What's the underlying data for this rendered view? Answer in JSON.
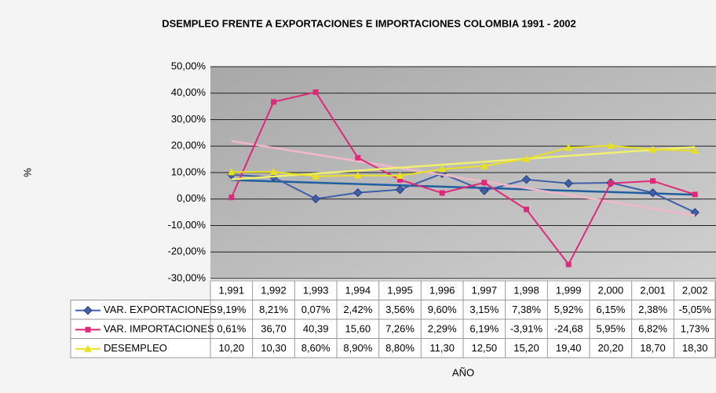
{
  "chart_data": {
    "type": "line",
    "title": "DSEMPLEO FRENTE A EXPORTACIONES E IMPORTACIONES COLOMBIA 1991 - 2002",
    "y_label": "%",
    "x_label": "AÑO",
    "categories": [
      "1,991",
      "1,992",
      "1,993",
      "1,994",
      "1,995",
      "1,996",
      "1,997",
      "1,998",
      "1,999",
      "2,000",
      "2,001",
      "2,002"
    ],
    "series": [
      {
        "name": "VAR. EXPORTACIONES",
        "color": "#3f5fa8",
        "trend_color": "#1f5f9f",
        "marker": "diamond",
        "values": [
          9.19,
          8.21,
          0.07,
          2.42,
          3.56,
          9.6,
          3.15,
          7.38,
          5.92,
          6.15,
          2.38,
          -5.05
        ],
        "value_labels": [
          "9,19%",
          "8,21%",
          "0,07%",
          "2,42%",
          "3,56%",
          "9,60%",
          "3,15%",
          "7,38%",
          "5,92%",
          "6,15%",
          "2,38%",
          "-5,05%"
        ]
      },
      {
        "name": "VAR. IMPORTACIONES",
        "color": "#e0287a",
        "trend_color": "#f0b8c8",
        "marker": "square",
        "values": [
          0.61,
          36.7,
          40.39,
          15.6,
          7.26,
          2.29,
          6.19,
          -3.91,
          -24.68,
          5.95,
          6.82,
          1.73
        ],
        "value_labels": [
          "0,61%",
          "36,70",
          "40,39",
          "15,60",
          "7,26%",
          "2,29%",
          "6,19%",
          "-3,91%",
          "-24,68",
          "5,95%",
          "6,82%",
          "1,73%"
        ]
      },
      {
        "name": "DESEMPLEO",
        "color": "#e8e020",
        "trend_color": "#f0f070",
        "marker": "triangle",
        "values": [
          10.2,
          10.3,
          8.6,
          8.9,
          8.8,
          11.3,
          12.5,
          15.2,
          19.4,
          20.2,
          18.7,
          18.3
        ],
        "value_labels": [
          "10,20",
          "10,30",
          "8,60%",
          "8,90%",
          "8,80%",
          "11,30",
          "12,50",
          "15,20",
          "19,40",
          "20,20",
          "18,70",
          "18,30"
        ]
      }
    ],
    "ylim": [
      -30,
      50
    ],
    "yticks": [
      {
        "value": 50,
        "label": "50,00%"
      },
      {
        "value": 40,
        "label": "40,00%"
      },
      {
        "value": 30,
        "label": "30,00%"
      },
      {
        "value": 20,
        "label": "20,00%"
      },
      {
        "value": 10,
        "label": "10,00%"
      },
      {
        "value": 0,
        "label": "0,00%"
      },
      {
        "value": -10,
        "label": "-10,00%"
      },
      {
        "value": -20,
        "label": "-20,00%"
      },
      {
        "value": -30,
        "label": "-30,00%"
      }
    ],
    "grid": true,
    "trendlines": true
  }
}
